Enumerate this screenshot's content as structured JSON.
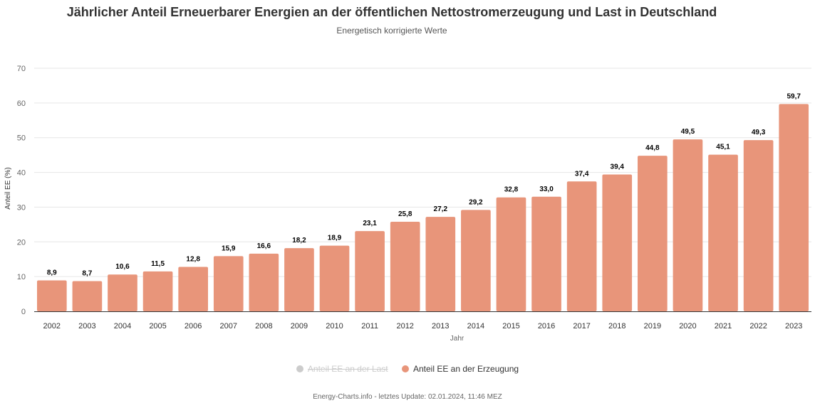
{
  "chart_data": {
    "type": "bar",
    "title": "Jährlicher Anteil Erneuerbarer Energien an der öffentlichen Nettostromerzeugung und Last in Deutschland",
    "subtitle": "Energetisch korrigierte Werte",
    "xlabel": "Jahr",
    "ylabel": "Anteil EE (%)",
    "ylim": [
      0,
      70
    ],
    "yticks": [
      0,
      10,
      20,
      30,
      40,
      50,
      60,
      70
    ],
    "grid": true,
    "legend_position": "bottom",
    "categories": [
      "2002",
      "2003",
      "2004",
      "2005",
      "2006",
      "2007",
      "2008",
      "2009",
      "2010",
      "2011",
      "2012",
      "2013",
      "2014",
      "2015",
      "2016",
      "2017",
      "2018",
      "2019",
      "2020",
      "2021",
      "2022",
      "2023"
    ],
    "series": [
      {
        "name": "Anteil EE an der Erzeugung",
        "color": "#e8957a",
        "visible": true,
        "values": [
          8.9,
          8.7,
          10.6,
          11.5,
          12.8,
          15.9,
          16.6,
          18.2,
          18.9,
          23.1,
          25.8,
          27.2,
          29.2,
          32.8,
          33.0,
          37.4,
          39.4,
          44.8,
          49.5,
          45.1,
          49.3,
          59.7
        ],
        "data_labels": [
          "8,9",
          "8,7",
          "10,6",
          "11,5",
          "12,8",
          "15,9",
          "16,6",
          "18,2",
          "18,9",
          "23,1",
          "25,8",
          "27,2",
          "29,2",
          "32,8",
          "33,0",
          "37,4",
          "39,4",
          "44,8",
          "49,5",
          "45,1",
          "49,3",
          "59,7"
        ]
      }
    ],
    "legend": [
      {
        "name": "Anteil EE an der Last",
        "color": "#cccccc",
        "visible": false
      },
      {
        "name": "Anteil EE an der Erzeugung",
        "color": "#e8957a",
        "visible": true
      }
    ]
  },
  "footer": "Energy-Charts.info - letztes Update: 02.01.2024, 11:46 MEZ"
}
